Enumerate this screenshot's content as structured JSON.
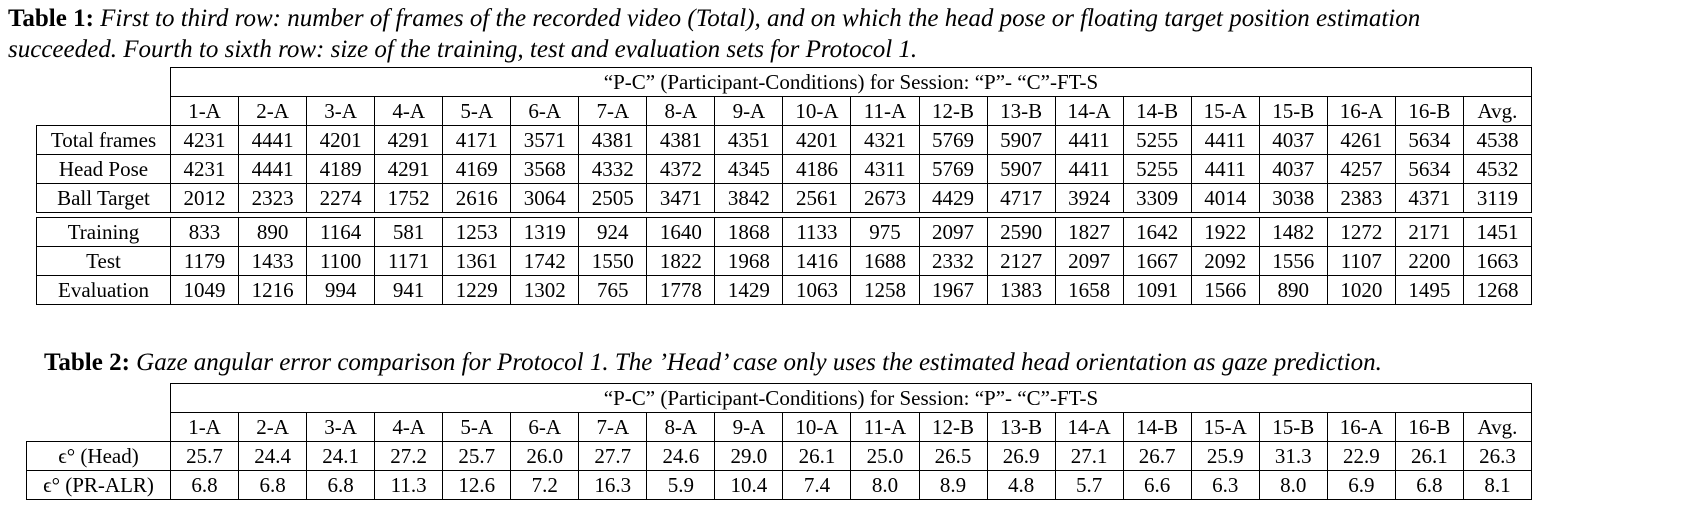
{
  "table1": {
    "caption_label": "Table 1:",
    "caption_text_line1": "First to third row: number of frames of the recorded video (Total), and on which the head pose or floating target position estimation",
    "caption_text_line2": "succeeded. Fourth to sixth row: size of the training, test and evaluation sets for Protocol 1.",
    "header": "“P-C” (Participant-Conditions) for Session: “P”- “C”-FT-S",
    "columns": [
      "1-A",
      "2-A",
      "3-A",
      "4-A",
      "5-A",
      "6-A",
      "7-A",
      "8-A",
      "9-A",
      "10-A",
      "11-A",
      "12-B",
      "13-B",
      "14-A",
      "14-B",
      "15-A",
      "15-B",
      "16-A",
      "16-B",
      "Avg."
    ],
    "rows_group1": [
      {
        "label": "Total frames",
        "values": [
          "4231",
          "4441",
          "4201",
          "4291",
          "4171",
          "3571",
          "4381",
          "4381",
          "4351",
          "4201",
          "4321",
          "5769",
          "5907",
          "4411",
          "5255",
          "4411",
          "4037",
          "4261",
          "5634",
          "4538"
        ]
      },
      {
        "label": "Head Pose",
        "values": [
          "4231",
          "4441",
          "4189",
          "4291",
          "4169",
          "3568",
          "4332",
          "4372",
          "4345",
          "4186",
          "4311",
          "5769",
          "5907",
          "4411",
          "5255",
          "4411",
          "4037",
          "4257",
          "5634",
          "4532"
        ]
      },
      {
        "label": "Ball Target",
        "values": [
          "2012",
          "2323",
          "2274",
          "1752",
          "2616",
          "3064",
          "2505",
          "3471",
          "3842",
          "2561",
          "2673",
          "4429",
          "4717",
          "3924",
          "3309",
          "4014",
          "3038",
          "2383",
          "4371",
          "3119"
        ]
      }
    ],
    "rows_group2": [
      {
        "label": "Training",
        "values": [
          "833",
          "890",
          "1164",
          "581",
          "1253",
          "1319",
          "924",
          "1640",
          "1868",
          "1133",
          "975",
          "2097",
          "2590",
          "1827",
          "1642",
          "1922",
          "1482",
          "1272",
          "2171",
          "1451"
        ]
      },
      {
        "label": "Test",
        "values": [
          "1179",
          "1433",
          "1100",
          "1171",
          "1361",
          "1742",
          "1550",
          "1822",
          "1968",
          "1416",
          "1688",
          "2332",
          "2127",
          "2097",
          "1667",
          "2092",
          "1556",
          "1107",
          "2200",
          "1663"
        ]
      },
      {
        "label": "Evaluation",
        "values": [
          "1049",
          "1216",
          "994",
          "941",
          "1229",
          "1302",
          "765",
          "1778",
          "1429",
          "1063",
          "1258",
          "1967",
          "1383",
          "1658",
          "1091",
          "1566",
          "890",
          "1020",
          "1495",
          "1268"
        ]
      }
    ]
  },
  "table2": {
    "caption_label": "Table 2:",
    "caption_text": "Gaze angular error comparison for Protocol 1. The ’Head’ case only uses the estimated head orientation as gaze prediction.",
    "header": "“P-C” (Participant-Conditions) for Session: “P”- “C”-FT-S",
    "columns": [
      "1-A",
      "2-A",
      "3-A",
      "4-A",
      "5-A",
      "6-A",
      "7-A",
      "8-A",
      "9-A",
      "10-A",
      "11-A",
      "12-B",
      "13-B",
      "14-A",
      "14-B",
      "15-A",
      "15-B",
      "16-A",
      "16-B",
      "Avg."
    ],
    "rows": [
      {
        "label": "ϵ° (Head)",
        "values": [
          "25.7",
          "24.4",
          "24.1",
          "27.2",
          "25.7",
          "26.0",
          "27.7",
          "24.6",
          "29.0",
          "26.1",
          "25.0",
          "26.5",
          "26.9",
          "27.1",
          "26.7",
          "25.9",
          "31.3",
          "22.9",
          "26.1",
          "26.3"
        ]
      },
      {
        "label": "ϵ° (PR-ALR)",
        "values": [
          "6.8",
          "6.8",
          "6.8",
          "11.3",
          "12.6",
          "7.2",
          "16.3",
          "5.9",
          "10.4",
          "7.4",
          "8.0",
          "8.9",
          "4.8",
          "5.7",
          "6.6",
          "6.3",
          "8.0",
          "6.9",
          "6.8",
          "8.1"
        ]
      }
    ]
  }
}
